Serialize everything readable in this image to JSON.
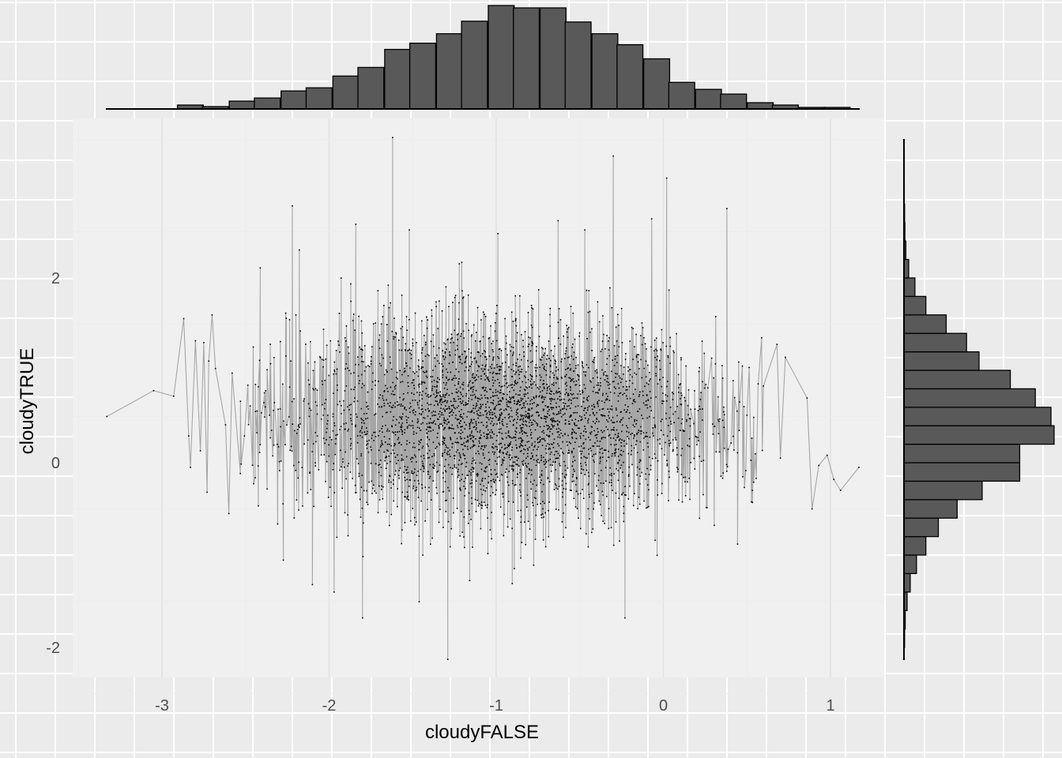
{
  "chart_data": {
    "type": "scatter",
    "title": "",
    "xlabel": "cloudyFALSE",
    "ylabel": "cloudyTRUE",
    "xlim": [
      -3.55,
      1.35
    ],
    "ylim": [
      -2.3,
      3.65
    ],
    "x_ticks": [
      -3,
      -2,
      -1,
      0,
      1
    ],
    "x_tick_labels": [
      "-3",
      "-2",
      "-1",
      "0",
      "1"
    ],
    "y_ticks": [
      -2,
      0,
      2
    ],
    "y_tick_labels": [
      "-2",
      "0",
      "2"
    ],
    "grid": true,
    "legend": "none",
    "points_connected_by_line": true,
    "point_color": "#000000",
    "line_color": "#a6a6a6",
    "background": "#f0f0f0",
    "bar_fill": "#595959",
    "point_distribution": {
      "x_mean": -0.95,
      "x_sd": 0.62,
      "y_mean": 0.45,
      "y_sd": 0.52,
      "approx_n": 3600
    },
    "points_shown": [
      [
        -3.33,
        0.5
      ],
      [
        -3.05,
        0.78
      ],
      [
        -2.93,
        0.72
      ],
      [
        -2.87,
        1.56
      ],
      [
        -2.84,
        0.29
      ],
      [
        -2.83,
        -0.05
      ],
      [
        -2.8,
        1.32
      ],
      [
        -2.77,
        0.13
      ],
      [
        -2.75,
        1.3
      ],
      [
        -2.73,
        -0.32
      ],
      [
        -2.72,
        1.1
      ],
      [
        -2.7,
        1.6
      ],
      [
        -2.68,
        1.02
      ],
      [
        -2.62,
        0.41
      ],
      [
        -2.6,
        -0.55
      ],
      [
        -2.58,
        0.97
      ],
      [
        -2.22,
        2.78
      ],
      [
        -2.1,
        -1.32
      ],
      [
        -1.97,
        -1.4
      ],
      [
        -1.84,
        2.58
      ],
      [
        -1.8,
        -1.68
      ],
      [
        -1.62,
        3.52
      ],
      [
        -1.52,
        2.52
      ],
      [
        -1.29,
        -2.13
      ],
      [
        -0.99,
        2.48
      ],
      [
        -0.63,
        2.62
      ],
      [
        -0.47,
        2.52
      ],
      [
        -0.3,
        3.32
      ],
      [
        -0.23,
        -1.68
      ],
      [
        -0.07,
        2.64
      ],
      [
        0.02,
        3.08
      ],
      [
        0.38,
        2.75
      ],
      [
        0.68,
        1.28
      ],
      [
        0.7,
        0.05
      ],
      [
        0.73,
        1.14
      ],
      [
        0.86,
        0.7
      ],
      [
        0.89,
        -0.5
      ],
      [
        0.93,
        -0.03
      ],
      [
        0.98,
        0.08
      ],
      [
        1.02,
        -0.18
      ],
      [
        1.06,
        -0.3
      ],
      [
        1.17,
        -0.05
      ]
    ],
    "top_histogram": {
      "bin_width": 0.155,
      "bins": [
        {
          "x": -3.3,
          "count": 0
        },
        {
          "x": -3.14,
          "count": 0
        },
        {
          "x": -2.99,
          "count": 0
        },
        {
          "x": -2.83,
          "count": 5
        },
        {
          "x": -2.68,
          "count": 3
        },
        {
          "x": -2.52,
          "count": 10
        },
        {
          "x": -2.37,
          "count": 14
        },
        {
          "x": -2.21,
          "count": 23
        },
        {
          "x": -2.06,
          "count": 27
        },
        {
          "x": -1.9,
          "count": 42
        },
        {
          "x": -1.75,
          "count": 53
        },
        {
          "x": -1.59,
          "count": 76
        },
        {
          "x": -1.44,
          "count": 84
        },
        {
          "x": -1.28,
          "count": 96
        },
        {
          "x": -1.13,
          "count": 112
        },
        {
          "x": -0.97,
          "count": 132
        },
        {
          "x": -0.82,
          "count": 129
        },
        {
          "x": -0.66,
          "count": 129
        },
        {
          "x": -0.51,
          "count": 111
        },
        {
          "x": -0.35,
          "count": 96
        },
        {
          "x": -0.2,
          "count": 82
        },
        {
          "x": -0.04,
          "count": 64
        },
        {
          "x": 0.11,
          "count": 34
        },
        {
          "x": 0.27,
          "count": 25
        },
        {
          "x": 0.42,
          "count": 19
        },
        {
          "x": 0.58,
          "count": 8
        },
        {
          "x": 0.73,
          "count": 5
        },
        {
          "x": 0.89,
          "count": 2
        },
        {
          "x": 1.04,
          "count": 2
        }
      ]
    },
    "right_histogram": {
      "bin_width": 0.2,
      "bins": [
        {
          "y": -1.9,
          "count": 0.2
        },
        {
          "y": -1.7,
          "count": 0.4
        },
        {
          "y": -1.5,
          "count": 1.0
        },
        {
          "y": -1.3,
          "count": 2.0
        },
        {
          "y": -1.1,
          "count": 4.0
        },
        {
          "y": -0.9,
          "count": 7.0
        },
        {
          "y": -0.7,
          "count": 11.0
        },
        {
          "y": -0.5,
          "count": 17.0
        },
        {
          "y": -0.3,
          "count": 25.0
        },
        {
          "y": -0.1,
          "count": 37.0
        },
        {
          "y": 0.1,
          "count": 37.0
        },
        {
          "y": 0.3,
          "count": 48.0
        },
        {
          "y": 0.5,
          "count": 47.0
        },
        {
          "y": 0.7,
          "count": 42.0
        },
        {
          "y": 0.9,
          "count": 34.0
        },
        {
          "y": 1.1,
          "count": 24.0
        },
        {
          "y": 1.3,
          "count": 20.0
        },
        {
          "y": 1.5,
          "count": 13.5
        },
        {
          "y": 1.7,
          "count": 7.0
        },
        {
          "y": 1.9,
          "count": 3.5
        },
        {
          "y": 2.1,
          "count": 1.5
        },
        {
          "y": 2.3,
          "count": 0.6
        },
        {
          "y": 2.5,
          "count": 0.3
        },
        {
          "y": 2.7,
          "count": 0.2
        },
        {
          "y": 2.9,
          "count": 0.1
        },
        {
          "y": 3.1,
          "count": 0.1
        },
        {
          "y": 3.3,
          "count": 0.1
        }
      ]
    }
  }
}
